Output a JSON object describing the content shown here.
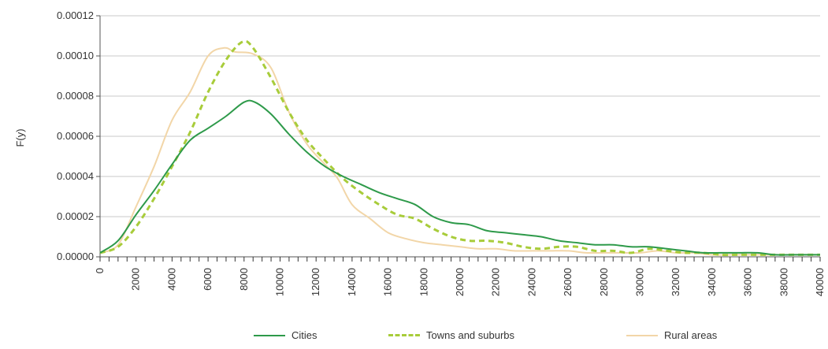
{
  "chart_data": {
    "type": "line",
    "title": "",
    "xlabel": "",
    "ylabel": "F(y)",
    "xlim": [
      0,
      40000
    ],
    "ylim": [
      0,
      0.00012
    ],
    "y_ticks": [
      "0.00000",
      "0.00002",
      "0.00004",
      "0.00006",
      "0.00008",
      "0.00010",
      "0.00012"
    ],
    "x_ticks": [
      "0",
      "2000",
      "4000",
      "6000",
      "8000",
      "10000",
      "12000",
      "14000",
      "16000",
      "18000",
      "20000",
      "22000",
      "24000",
      "26000",
      "28000",
      "30000",
      "32000",
      "34000",
      "36000",
      "38000",
      "40000"
    ],
    "grid": "horizontal",
    "legend": "bottom",
    "series": [
      {
        "name": "Cities",
        "color": "#2e9a4a",
        "style": "solid",
        "points": [
          [
            0,
            2e-06
          ],
          [
            1000,
            8e-06
          ],
          [
            2000,
            2.1e-05
          ],
          [
            3000,
            3.3e-05
          ],
          [
            4000,
            4.6e-05
          ],
          [
            5000,
            5.8e-05
          ],
          [
            6000,
            6.4e-05
          ],
          [
            7000,
            7e-05
          ],
          [
            8000,
            7.7e-05
          ],
          [
            8600,
            7.7e-05
          ],
          [
            9500,
            7.1e-05
          ],
          [
            10500,
            6.1e-05
          ],
          [
            11500,
            5.2e-05
          ],
          [
            12500,
            4.5e-05
          ],
          [
            13500,
            4e-05
          ],
          [
            14500,
            3.6e-05
          ],
          [
            15500,
            3.2e-05
          ],
          [
            16500,
            2.9e-05
          ],
          [
            17500,
            2.6e-05
          ],
          [
            18500,
            2e-05
          ],
          [
            19500,
            1.7e-05
          ],
          [
            20500,
            1.6e-05
          ],
          [
            21500,
            1.3e-05
          ],
          [
            22500,
            1.2e-05
          ],
          [
            23500,
            1.1e-05
          ],
          [
            24500,
            1e-05
          ],
          [
            25500,
            8e-06
          ],
          [
            26500,
            7e-06
          ],
          [
            27500,
            6e-06
          ],
          [
            28500,
            6e-06
          ],
          [
            29500,
            5e-06
          ],
          [
            30500,
            5e-06
          ],
          [
            31500,
            4e-06
          ],
          [
            32500,
            3e-06
          ],
          [
            33500,
            2e-06
          ],
          [
            34500,
            2e-06
          ],
          [
            35500,
            2e-06
          ],
          [
            36500,
            2e-06
          ],
          [
            37500,
            1e-06
          ],
          [
            38500,
            1e-06
          ],
          [
            40000,
            1e-06
          ]
        ]
      },
      {
        "name": "Towns and suburbs",
        "color": "#a8cc3a",
        "style": "dashed",
        "points": [
          [
            0,
            2e-06
          ],
          [
            1000,
            5e-06
          ],
          [
            2000,
            1.5e-05
          ],
          [
            3000,
            2.9e-05
          ],
          [
            4000,
            4.5e-05
          ],
          [
            5000,
            6.2e-05
          ],
          [
            6000,
            8.2e-05
          ],
          [
            7000,
            9.8e-05
          ],
          [
            7900,
            0.000107
          ],
          [
            8500,
            0.000104
          ],
          [
            9500,
            8.9e-05
          ],
          [
            10500,
            7.2e-05
          ],
          [
            11500,
            5.8e-05
          ],
          [
            12500,
            4.8e-05
          ],
          [
            13500,
            3.9e-05
          ],
          [
            14500,
            3.2e-05
          ],
          [
            15500,
            2.6e-05
          ],
          [
            16500,
            2.1e-05
          ],
          [
            17500,
            1.9e-05
          ],
          [
            18500,
            1.4e-05
          ],
          [
            19500,
            1e-05
          ],
          [
            20500,
            8e-06
          ],
          [
            21500,
            8e-06
          ],
          [
            22500,
            7e-06
          ],
          [
            23500,
            5e-06
          ],
          [
            24500,
            4e-06
          ],
          [
            25500,
            5e-06
          ],
          [
            26500,
            5e-06
          ],
          [
            27500,
            3e-06
          ],
          [
            28500,
            3e-06
          ],
          [
            29500,
            2e-06
          ],
          [
            30500,
            4e-06
          ],
          [
            31500,
            3e-06
          ],
          [
            32500,
            2e-06
          ],
          [
            33500,
            2e-06
          ],
          [
            34500,
            1e-06
          ],
          [
            35500,
            1e-06
          ],
          [
            36500,
            1e-06
          ],
          [
            37500,
            1e-06
          ],
          [
            38500,
            1e-06
          ],
          [
            40000,
            1e-06
          ]
        ]
      },
      {
        "name": "Rural areas",
        "color": "#f2d6a8",
        "style": "solid",
        "points": [
          [
            0,
            2e-06
          ],
          [
            1000,
            6e-06
          ],
          [
            2000,
            2.5e-05
          ],
          [
            3000,
            4.5e-05
          ],
          [
            4000,
            6.8e-05
          ],
          [
            5000,
            8.2e-05
          ],
          [
            6000,
            0.0001
          ],
          [
            6900,
            0.000104
          ],
          [
            7500,
            0.000102
          ],
          [
            8500,
            0.000101
          ],
          [
            9500,
            9.4e-05
          ],
          [
            10500,
            7.2e-05
          ],
          [
            11500,
            5.6e-05
          ],
          [
            12500,
            4.6e-05
          ],
          [
            13200,
            3.9e-05
          ],
          [
            14000,
            2.6e-05
          ],
          [
            15000,
            1.9e-05
          ],
          [
            16000,
            1.2e-05
          ],
          [
            17000,
            9e-06
          ],
          [
            18000,
            7e-06
          ],
          [
            19000,
            6e-06
          ],
          [
            20000,
            5e-06
          ],
          [
            21000,
            4e-06
          ],
          [
            22000,
            4e-06
          ],
          [
            23000,
            3e-06
          ],
          [
            24000,
            3e-06
          ],
          [
            25000,
            3e-06
          ],
          [
            26000,
            3e-06
          ],
          [
            27000,
            2e-06
          ],
          [
            28000,
            2e-06
          ],
          [
            29000,
            2e-06
          ],
          [
            30000,
            2e-06
          ],
          [
            31000,
            3e-06
          ],
          [
            32000,
            2e-06
          ],
          [
            33000,
            2e-06
          ],
          [
            34000,
            1e-06
          ],
          [
            35000,
            1e-06
          ],
          [
            36000,
            1e-06
          ],
          [
            37000,
            1e-06
          ],
          [
            38000,
            1e-06
          ],
          [
            40000,
            1e-06
          ]
        ]
      }
    ]
  }
}
